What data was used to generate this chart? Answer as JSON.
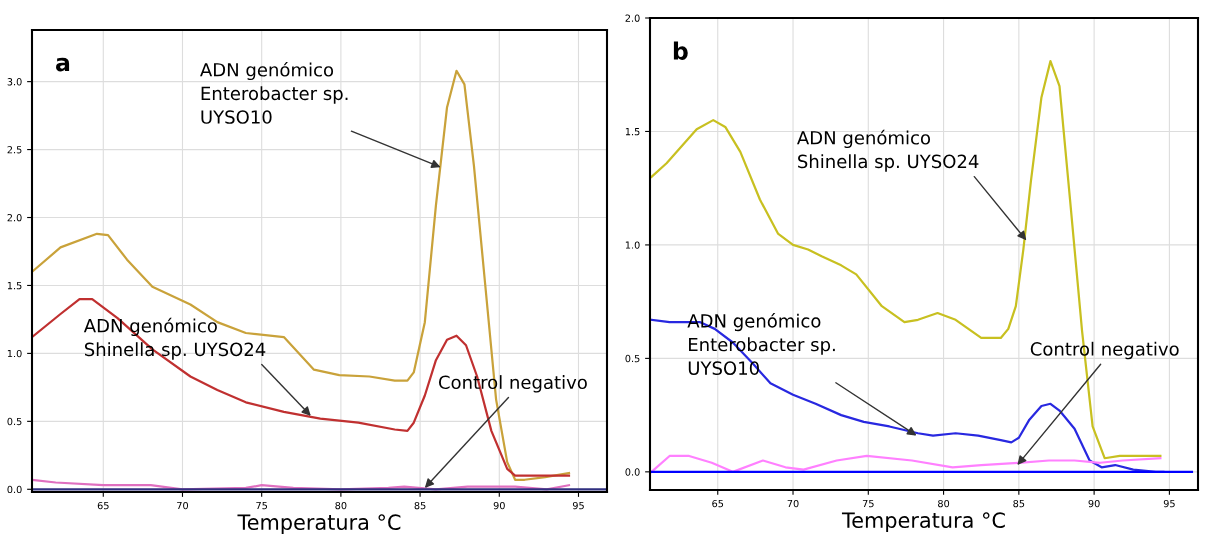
{
  "chart_data": [
    {
      "type": "line",
      "xlabel": "Temperatura °C",
      "xlim": [
        60.5,
        96.8
      ],
      "ylim": [
        -0.02,
        3.38
      ],
      "xticks": [
        65,
        70,
        75,
        80,
        85,
        90,
        95
      ],
      "yticks": [
        {
          "value": 0,
          "label": "0.0"
        },
        {
          "value": 0.5,
          "label": "0.5"
        },
        {
          "value": 1,
          "label": "1.0"
        },
        {
          "value": 1.5,
          "label": "1.5"
        },
        {
          "value": 2,
          "label": "2.0"
        },
        {
          "value": 2.5,
          "label": "2.5"
        },
        {
          "value": 3,
          "label": "3.0"
        }
      ],
      "grid": true,
      "annotations": [
        "a",
        {
          "text": "ADN genómico\nEnterobacter sp.\nUYSO10",
          "x": 86.3,
          "y": 2.37
        },
        {
          "text": "ADN genómico\nShinella sp. UYSO24",
          "x": 78.1,
          "y": 0.54
        },
        {
          "text": "Control negativo",
          "x": 85.3,
          "y": 0.01
        }
      ],
      "series": [
        {
          "color": "#c9a23a",
          "x": [
            60.5,
            62.3,
            64.6,
            65.3,
            66.5,
            68.1,
            70.5,
            72.2,
            74.0,
            76.4,
            78.3,
            79.9,
            81.8,
            83.4,
            84.2,
            84.6,
            85.3,
            86.0,
            86.7,
            87.3,
            87.8,
            88.4,
            89.1,
            89.8,
            90.5,
            91.0,
            91.6,
            92.9,
            94.4
          ],
          "values": [
            1.6,
            1.78,
            1.88,
            1.87,
            1.69,
            1.49,
            1.36,
            1.23,
            1.15,
            1.12,
            0.88,
            0.84,
            0.83,
            0.8,
            0.8,
            0.86,
            1.23,
            2.09,
            2.81,
            3.08,
            2.98,
            2.38,
            1.52,
            0.66,
            0.2,
            0.07,
            0.07,
            0.09,
            0.12
          ]
        },
        {
          "color": "#c03030",
          "x": [
            60.5,
            62.3,
            63.5,
            64.3,
            65.9,
            68.1,
            70.5,
            72.2,
            74.0,
            76.4,
            78.7,
            81.1,
            83.4,
            84.2,
            84.6,
            85.3,
            86.0,
            86.7,
            87.3,
            87.9,
            88.6,
            89.5,
            90.5,
            91.0,
            94.4
          ],
          "values": [
            1.12,
            1.29,
            1.4,
            1.4,
            1.26,
            1.03,
            0.83,
            0.73,
            0.64,
            0.57,
            0.52,
            0.49,
            0.44,
            0.43,
            0.49,
            0.69,
            0.95,
            1.1,
            1.13,
            1.06,
            0.83,
            0.43,
            0.15,
            0.1,
            0.1
          ]
        },
        {
          "color": "#e070c0",
          "x": [
            60.5,
            62.0,
            65.0,
            68.0,
            70.0,
            74.0,
            75.0,
            77.0,
            80.0,
            83.0,
            84.0,
            86.0,
            88.0,
            91.0,
            93.0,
            94.4
          ],
          "values": [
            0.07,
            0.05,
            0.03,
            0.03,
            0.0,
            0.01,
            0.03,
            0.01,
            0.0,
            0.01,
            0.02,
            0.0,
            0.02,
            0.02,
            0.0,
            0.03
          ]
        },
        {
          "color": "#303080",
          "x": [
            60.5,
            96.8
          ],
          "values": [
            0,
            0
          ]
        }
      ]
    },
    {
      "type": "line",
      "xlabel": "Temperatura °C",
      "xlim": [
        60.5,
        96.9
      ],
      "ylim": [
        -0.08,
        2.0
      ],
      "xticks": [
        65,
        70,
        75,
        80,
        85,
        90,
        95
      ],
      "yticks": [
        {
          "value": 0,
          "label": "0.0"
        },
        {
          "value": 0.5,
          "label": "0.5"
        },
        {
          "value": 1,
          "label": "1.0"
        },
        {
          "value": 1.5,
          "label": "1.5"
        },
        {
          "value": 2,
          "label": "2.0"
        }
      ],
      "grid": true,
      "annotations": [
        "b",
        {
          "text": "ADN genómico\nShinella sp. UYSO24",
          "x": 85.5,
          "y": 1.02
        },
        {
          "text": "ADN genómico\nEnterobacter sp.\nUYSO10",
          "x": 78.2,
          "y": 0.16
        },
        {
          "text": "Control negativo",
          "x": 84.9,
          "y": 0.03
        }
      ],
      "series": [
        {
          "color": "#c8c020",
          "x": [
            60.6,
            61.6,
            63.6,
            64.7,
            65.5,
            66.5,
            67.8,
            69.0,
            70.0,
            71.0,
            71.9,
            73.2,
            74.2,
            75.9,
            77.4,
            78.3,
            79.6,
            80.8,
            82.5,
            83.8,
            84.3,
            84.8,
            85.3,
            85.8,
            86.5,
            87.1,
            87.7,
            88.4,
            89.2,
            89.9,
            90.7,
            91.7,
            92.6,
            94.4
          ],
          "values": [
            1.3,
            1.36,
            1.51,
            1.55,
            1.52,
            1.41,
            1.2,
            1.05,
            1.0,
            0.98,
            0.95,
            0.91,
            0.87,
            0.73,
            0.66,
            0.67,
            0.7,
            0.67,
            0.59,
            0.59,
            0.63,
            0.73,
            0.98,
            1.28,
            1.65,
            1.81,
            1.7,
            1.2,
            0.62,
            0.2,
            0.06,
            0.07,
            0.07,
            0.07
          ]
        },
        {
          "color": "#2828e0",
          "x": [
            60.6,
            61.8,
            63.8,
            64.8,
            66.0,
            67.3,
            68.5,
            70.0,
            71.5,
            73.2,
            74.7,
            76.4,
            78.3,
            79.3,
            80.8,
            82.3,
            83.8,
            84.5,
            85.0,
            85.7,
            86.5,
            87.1,
            87.7,
            88.7,
            89.7,
            90.5,
            91.4,
            92.6,
            94.1,
            94.6
          ],
          "values": [
            0.67,
            0.66,
            0.66,
            0.63,
            0.57,
            0.48,
            0.39,
            0.34,
            0.3,
            0.25,
            0.22,
            0.2,
            0.17,
            0.16,
            0.17,
            0.16,
            0.14,
            0.13,
            0.15,
            0.23,
            0.29,
            0.3,
            0.27,
            0.19,
            0.05,
            0.02,
            0.03,
            0.01,
            0.0,
            0.0
          ]
        },
        {
          "color": "#ff80ff",
          "x": [
            60.6,
            61.8,
            63.1,
            64.6,
            66.0,
            68.0,
            69.5,
            70.7,
            72.9,
            74.9,
            77.9,
            80.6,
            82.5,
            85.0,
            87.0,
            88.7,
            90.4,
            91.9,
            94.4
          ],
          "values": [
            0.0,
            0.07,
            0.07,
            0.04,
            0.0,
            0.05,
            0.02,
            0.01,
            0.05,
            0.07,
            0.05,
            0.02,
            0.03,
            0.04,
            0.05,
            0.05,
            0.04,
            0.05,
            0.06
          ]
        },
        {
          "color": "#0000ff",
          "x": [
            60.6,
            96.5
          ],
          "values": [
            0,
            0
          ]
        }
      ]
    }
  ]
}
